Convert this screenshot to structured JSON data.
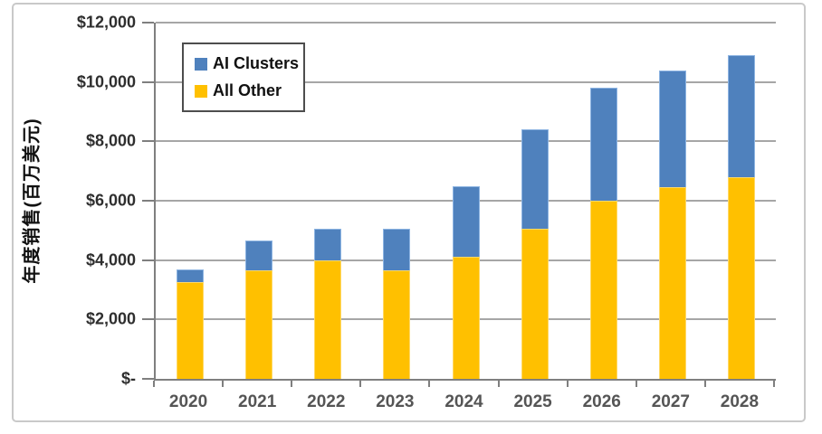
{
  "chart_data": {
    "type": "bar",
    "stacked": true,
    "title": "",
    "xlabel": "",
    "ylabel": "年度销售(百万美元)",
    "categories": [
      "2020",
      "2021",
      "2022",
      "2023",
      "2024",
      "2025",
      "2026",
      "2027",
      "2028"
    ],
    "series": [
      {
        "name": "AI Clusters",
        "color": "#4F81BD",
        "edge_color": "#8DB4E2",
        "values": [
          450,
          1000,
          1050,
          1400,
          2400,
          3350,
          3800,
          3950,
          4100
        ]
      },
      {
        "name": "All Other",
        "color": "#FFC000",
        "edge_color": "#FFD966",
        "values": [
          3250,
          3650,
          4000,
          3650,
          4100,
          5050,
          6000,
          6450,
          6800
        ]
      }
    ],
    "totals": [
      3700,
      4650,
      5050,
      5050,
      6500,
      8400,
      9800,
      10400,
      10900
    ],
    "ylim": [
      0,
      12000
    ],
    "ytick_step": 2000,
    "ytick_labels": [
      "$-",
      "$2,000",
      "$4,000",
      "$6,000",
      "$8,000",
      "$10,000",
      "$12,000"
    ],
    "grid": true,
    "legend_position": "top-left-inside"
  },
  "legend": {
    "items": [
      {
        "label": "AI Clusters",
        "color": "#4F81BD"
      },
      {
        "label": "All Other",
        "color": "#FFC000"
      }
    ]
  },
  "colors": {
    "ai_clusters": "#4F81BD",
    "all_other": "#FFC000",
    "gridline": "#A6A6A6",
    "axis_line": "#7F7F7F",
    "axis_text": "#2E2E2E",
    "xaxis_text": "#555555",
    "frame_border": "#C9C9C9"
  }
}
